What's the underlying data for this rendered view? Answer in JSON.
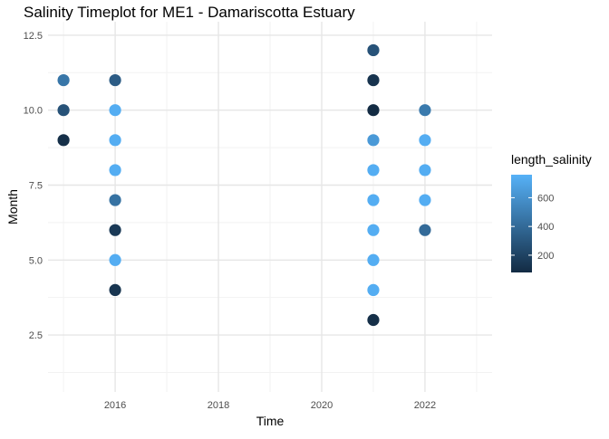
{
  "chart_data": {
    "type": "scatter",
    "title": "Salinity Timeplot for ME1 - Damariscotta Estuary",
    "xlabel": "Time",
    "ylabel": "Month",
    "x_ticks": [
      "2016",
      "2018",
      "2020",
      "2022"
    ],
    "y_ticks": [
      "2.5",
      "5.0",
      "7.5",
      "10.0",
      "12.5"
    ],
    "xlim": [
      2014.7,
      2023.3
    ],
    "ylim": [
      0.6,
      12.95
    ],
    "grid": true,
    "legend": {
      "title": "length_salinity",
      "placement": "right",
      "ticks": [
        "200",
        "400",
        "600"
      ],
      "range": [
        80,
        760
      ],
      "color_low": "#132B43",
      "color_high": "#56B1F7"
    },
    "points": [
      {
        "x": 2015,
        "y": 11,
        "value": 460
      },
      {
        "x": 2015,
        "y": 10,
        "value": 280
      },
      {
        "x": 2015,
        "y": 9,
        "value": 100
      },
      {
        "x": 2016,
        "y": 11,
        "value": 330
      },
      {
        "x": 2016,
        "y": 10,
        "value": 740
      },
      {
        "x": 2016,
        "y": 9,
        "value": 740
      },
      {
        "x": 2016,
        "y": 8,
        "value": 740
      },
      {
        "x": 2016,
        "y": 7,
        "value": 440
      },
      {
        "x": 2016,
        "y": 6,
        "value": 150
      },
      {
        "x": 2016,
        "y": 5,
        "value": 740
      },
      {
        "x": 2016,
        "y": 4,
        "value": 130
      },
      {
        "x": 2021,
        "y": 12,
        "value": 280
      },
      {
        "x": 2021,
        "y": 11,
        "value": 120
      },
      {
        "x": 2021,
        "y": 10,
        "value": 80
      },
      {
        "x": 2021,
        "y": 9,
        "value": 640
      },
      {
        "x": 2021,
        "y": 8,
        "value": 740
      },
      {
        "x": 2021,
        "y": 7,
        "value": 740
      },
      {
        "x": 2021,
        "y": 6,
        "value": 740
      },
      {
        "x": 2021,
        "y": 5,
        "value": 740
      },
      {
        "x": 2021,
        "y": 4,
        "value": 740
      },
      {
        "x": 2021,
        "y": 3,
        "value": 100
      },
      {
        "x": 2022,
        "y": 10,
        "value": 480
      },
      {
        "x": 2022,
        "y": 9,
        "value": 740
      },
      {
        "x": 2022,
        "y": 8,
        "value": 740
      },
      {
        "x": 2022,
        "y": 7,
        "value": 740
      },
      {
        "x": 2022,
        "y": 6,
        "value": 400
      }
    ]
  }
}
